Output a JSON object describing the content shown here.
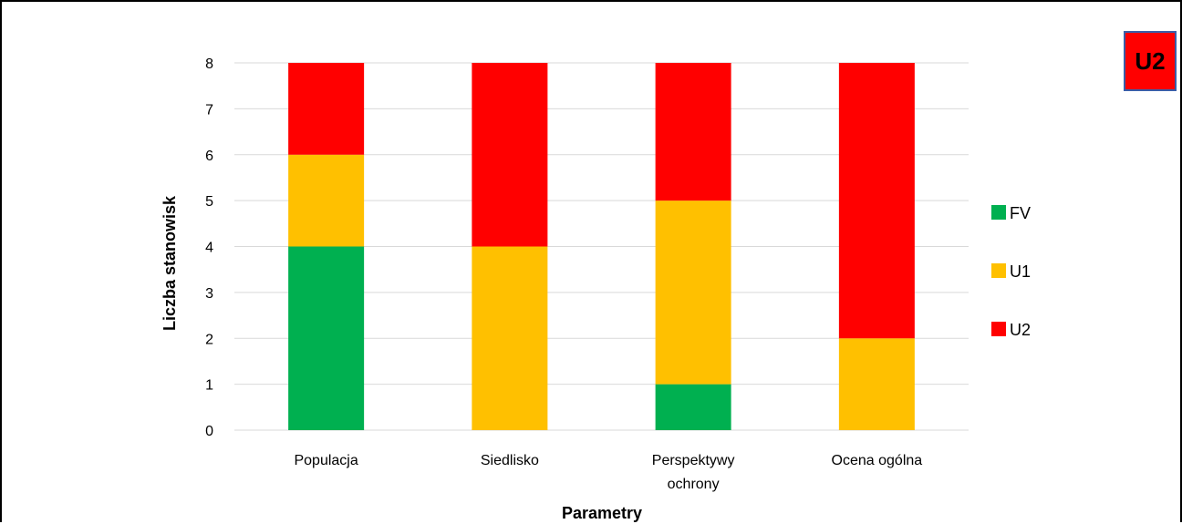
{
  "badge": {
    "label": "U2",
    "color": "#ff0000"
  },
  "chart_data": {
    "type": "bar",
    "stacked": true,
    "categories": [
      "Populacja",
      "Siedlisko",
      "Perspektywy ochrony",
      "Ocena ogólna"
    ],
    "category_lines": [
      [
        "Populacja"
      ],
      [
        "Siedlisko"
      ],
      [
        "Perspektywy",
        "ochrony"
      ],
      [
        "Ocena ogólna"
      ]
    ],
    "series": [
      {
        "name": "FV",
        "color": "#00b050",
        "values": [
          4,
          0,
          1,
          0
        ]
      },
      {
        "name": "U1",
        "color": "#ffc000",
        "values": [
          2,
          4,
          4,
          2
        ]
      },
      {
        "name": "U2",
        "color": "#ff0000",
        "values": [
          2,
          4,
          3,
          6
        ]
      }
    ],
    "xlabel": "Parametry",
    "ylabel": "Liczba stanowisk",
    "ylim": [
      0,
      8
    ],
    "yticks": [
      "0",
      "1",
      "2",
      "3",
      "4",
      "5",
      "6",
      "7",
      "8"
    ],
    "grid": true,
    "legend_position": "right"
  }
}
